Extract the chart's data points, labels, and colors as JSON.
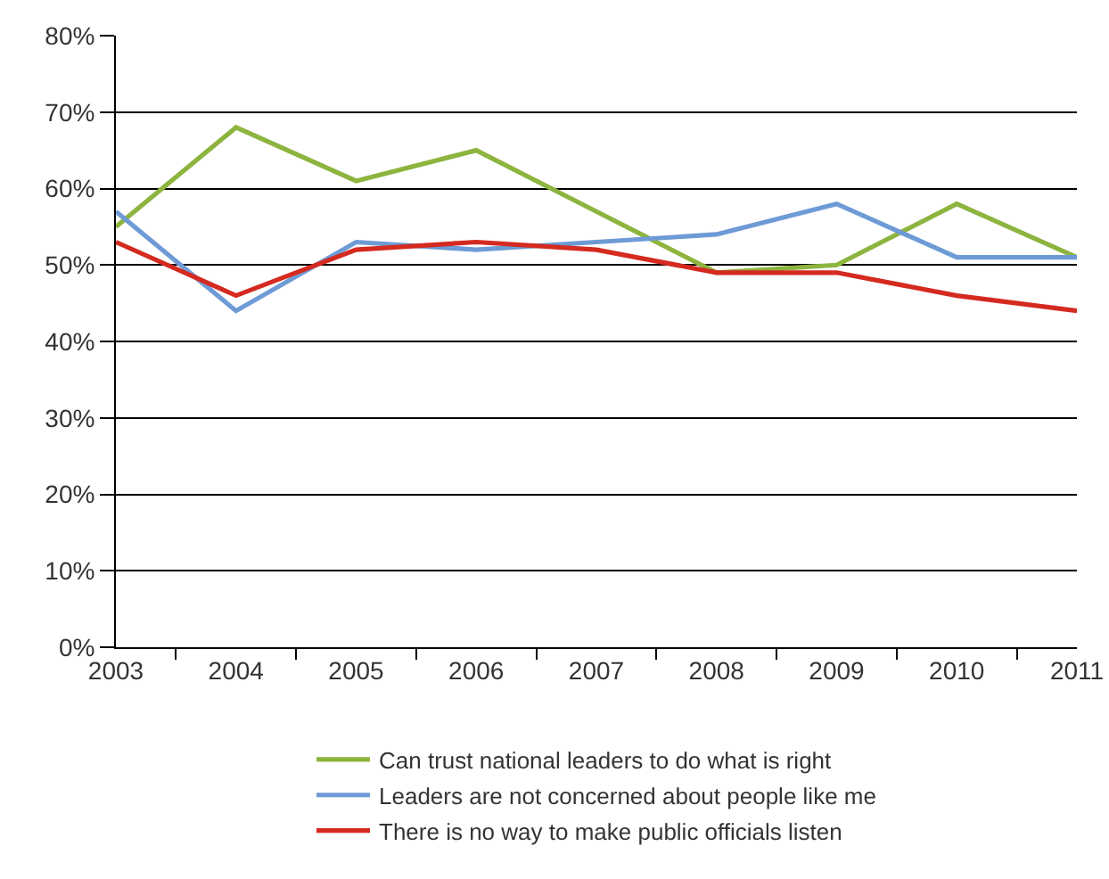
{
  "chart_data": {
    "type": "line",
    "categories": [
      "2003",
      "2004",
      "2005",
      "2006",
      "2007",
      "2008",
      "2009",
      "2010",
      "2011"
    ],
    "series": [
      {
        "name": "Can trust national leaders to do what is right",
        "color": "#8db43e",
        "values": [
          55,
          68,
          61,
          65,
          57,
          49,
          50,
          58,
          51
        ]
      },
      {
        "name": "Leaders are not concerned about people like me",
        "color": "#6e9bd6",
        "values": [
          57,
          44,
          53,
          52,
          53,
          54,
          58,
          51,
          51
        ]
      },
      {
        "name": "There is no way to make public officials listen",
        "color": "#d42a20",
        "values": [
          53,
          46,
          52,
          53,
          52,
          49,
          49,
          46,
          44
        ]
      }
    ],
    "ylim": [
      0,
      80
    ],
    "yticks": [
      {
        "value": 0,
        "label": "0%"
      },
      {
        "value": 10,
        "label": "10%"
      },
      {
        "value": 20,
        "label": "20%"
      },
      {
        "value": 30,
        "label": "30%"
      },
      {
        "value": 40,
        "label": "40%"
      },
      {
        "value": 50,
        "label": "50%"
      },
      {
        "value": 60,
        "label": "60%"
      },
      {
        "value": 70,
        "label": "70%"
      },
      {
        "value": 80,
        "label": "80%"
      }
    ],
    "grid": "y",
    "legend": "bottom",
    "marker": "none",
    "line_style": "solid"
  }
}
